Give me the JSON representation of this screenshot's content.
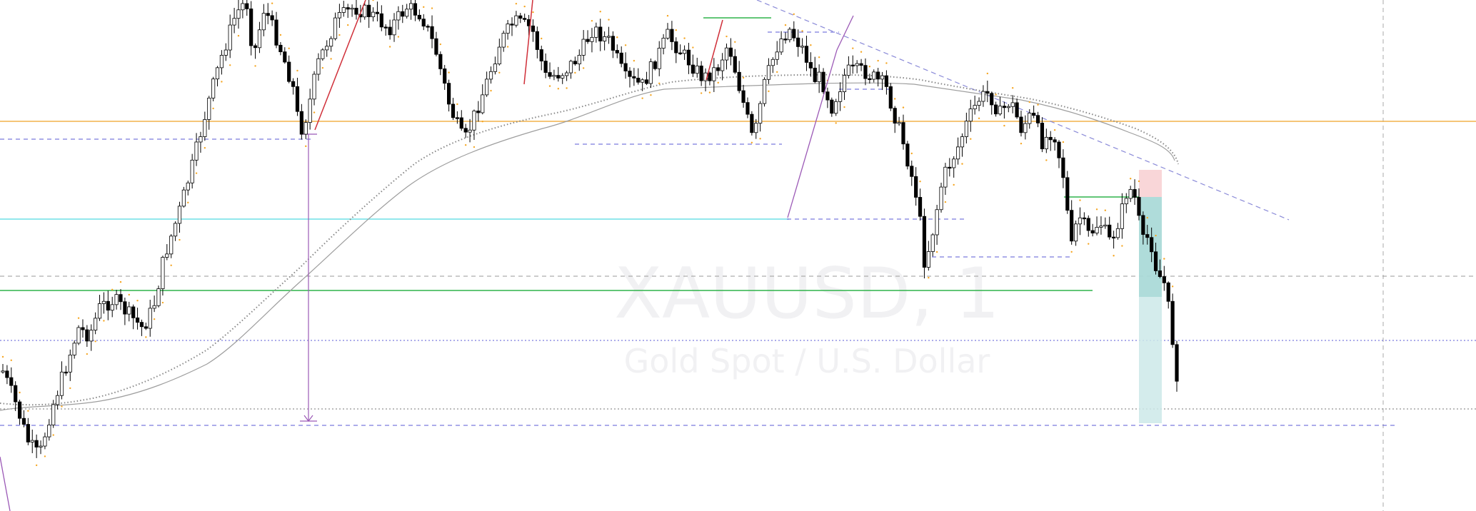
{
  "watermark": {
    "symbol": "XAUUSD, 1",
    "description": "Gold Spot / U.S. Dollar"
  },
  "chart_data": {
    "type": "candlestick",
    "symbol": "XAUUSD",
    "timeframe": "1",
    "description": "Gold Spot / U.S. Dollar",
    "ylim": [
      0,
      716
    ],
    "bars": 280,
    "price_path_keypoints": [
      [
        0,
        510
      ],
      [
        20,
        560
      ],
      [
        40,
        620
      ],
      [
        55,
        640
      ],
      [
        70,
        580
      ],
      [
        90,
        520
      ],
      [
        110,
        460
      ],
      [
        125,
        470
      ],
      [
        140,
        430
      ],
      [
        160,
        420
      ],
      [
        180,
        440
      ],
      [
        200,
        460
      ],
      [
        215,
        430
      ],
      [
        230,
        360
      ],
      [
        250,
        300
      ],
      [
        270,
        230
      ],
      [
        290,
        150
      ],
      [
        310,
        80
      ],
      [
        330,
        20
      ],
      [
        345,
        0
      ],
      [
        355,
        80
      ],
      [
        370,
        10
      ],
      [
        390,
        60
      ],
      [
        410,
        120
      ],
      [
        420,
        185
      ],
      [
        430,
        160
      ],
      [
        445,
        90
      ],
      [
        470,
        30
      ],
      [
        495,
        10
      ],
      [
        520,
        20
      ],
      [
        545,
        40
      ],
      [
        570,
        10
      ],
      [
        590,
        20
      ],
      [
        610,
        70
      ],
      [
        630,
        150
      ],
      [
        650,
        200
      ],
      [
        665,
        160
      ],
      [
        680,
        120
      ],
      [
        700,
        60
      ],
      [
        720,
        30
      ],
      [
        745,
        40
      ],
      [
        765,
        110
      ],
      [
        790,
        100
      ],
      [
        810,
        80
      ],
      [
        830,
        40
      ],
      [
        855,
        60
      ],
      [
        875,
        110
      ],
      [
        900,
        120
      ],
      [
        915,
        90
      ],
      [
        935,
        50
      ],
      [
        960,
        80
      ],
      [
        985,
        110
      ],
      [
        1005,
        95
      ],
      [
        1020,
        60
      ],
      [
        1040,
        140
      ],
      [
        1055,
        200
      ],
      [
        1070,
        120
      ],
      [
        1090,
        60
      ],
      [
        1105,
        40
      ],
      [
        1125,
        70
      ],
      [
        1140,
        110
      ],
      [
        1150,
        110
      ],
      [
        1165,
        150
      ],
      [
        1185,
        100
      ],
      [
        1210,
        100
      ],
      [
        1240,
        120
      ],
      [
        1265,
        200
      ],
      [
        1285,
        280
      ],
      [
        1295,
        370
      ],
      [
        1305,
        330
      ],
      [
        1320,
        250
      ],
      [
        1340,
        210
      ],
      [
        1355,
        170
      ],
      [
        1370,
        140
      ],
      [
        1385,
        130
      ],
      [
        1400,
        160
      ],
      [
        1415,
        140
      ],
      [
        1430,
        180
      ],
      [
        1445,
        160
      ],
      [
        1460,
        200
      ],
      [
        1475,
        180
      ],
      [
        1490,
        250
      ],
      [
        1500,
        350
      ],
      [
        1510,
        300
      ],
      [
        1525,
        330
      ],
      [
        1540,
        310
      ],
      [
        1555,
        340
      ],
      [
        1570,
        300
      ],
      [
        1580,
        260
      ],
      [
        1590,
        280
      ],
      [
        1600,
        340
      ],
      [
        1610,
        330
      ],
      [
        1620,
        380
      ],
      [
        1632,
        400
      ],
      [
        1640,
        460
      ],
      [
        1650,
        540
      ],
      [
        1652,
        575
      ]
    ],
    "horizontal_levels": [
      {
        "style": "solid",
        "color": "#f2b24a"
      },
      {
        "style": "dashed",
        "color": "#5a5ad6"
      },
      {
        "style": "solid",
        "color": "#6fe0e6"
      },
      {
        "style": "dashed",
        "color": "#9a9a9a"
      },
      {
        "style": "solid",
        "color": "#2fb34a"
      },
      {
        "style": "dotted",
        "color": "#5a5ad6"
      },
      {
        "style": "dotted",
        "color": "#777777"
      },
      {
        "style": "dashed",
        "color": "#5a5ad6"
      }
    ],
    "trendlines": [
      {
        "color": "#8a8ad8",
        "style": "dashed"
      }
    ],
    "position_tool": {
      "direction": "short",
      "stop_color": "#f9d6d8",
      "target_color": "#cde9e9"
    },
    "colors": {
      "up": "#ffffff",
      "down": "#000000",
      "wick": "#000000",
      "psar": "#f5a623",
      "ma": "#9e9e9e"
    }
  }
}
